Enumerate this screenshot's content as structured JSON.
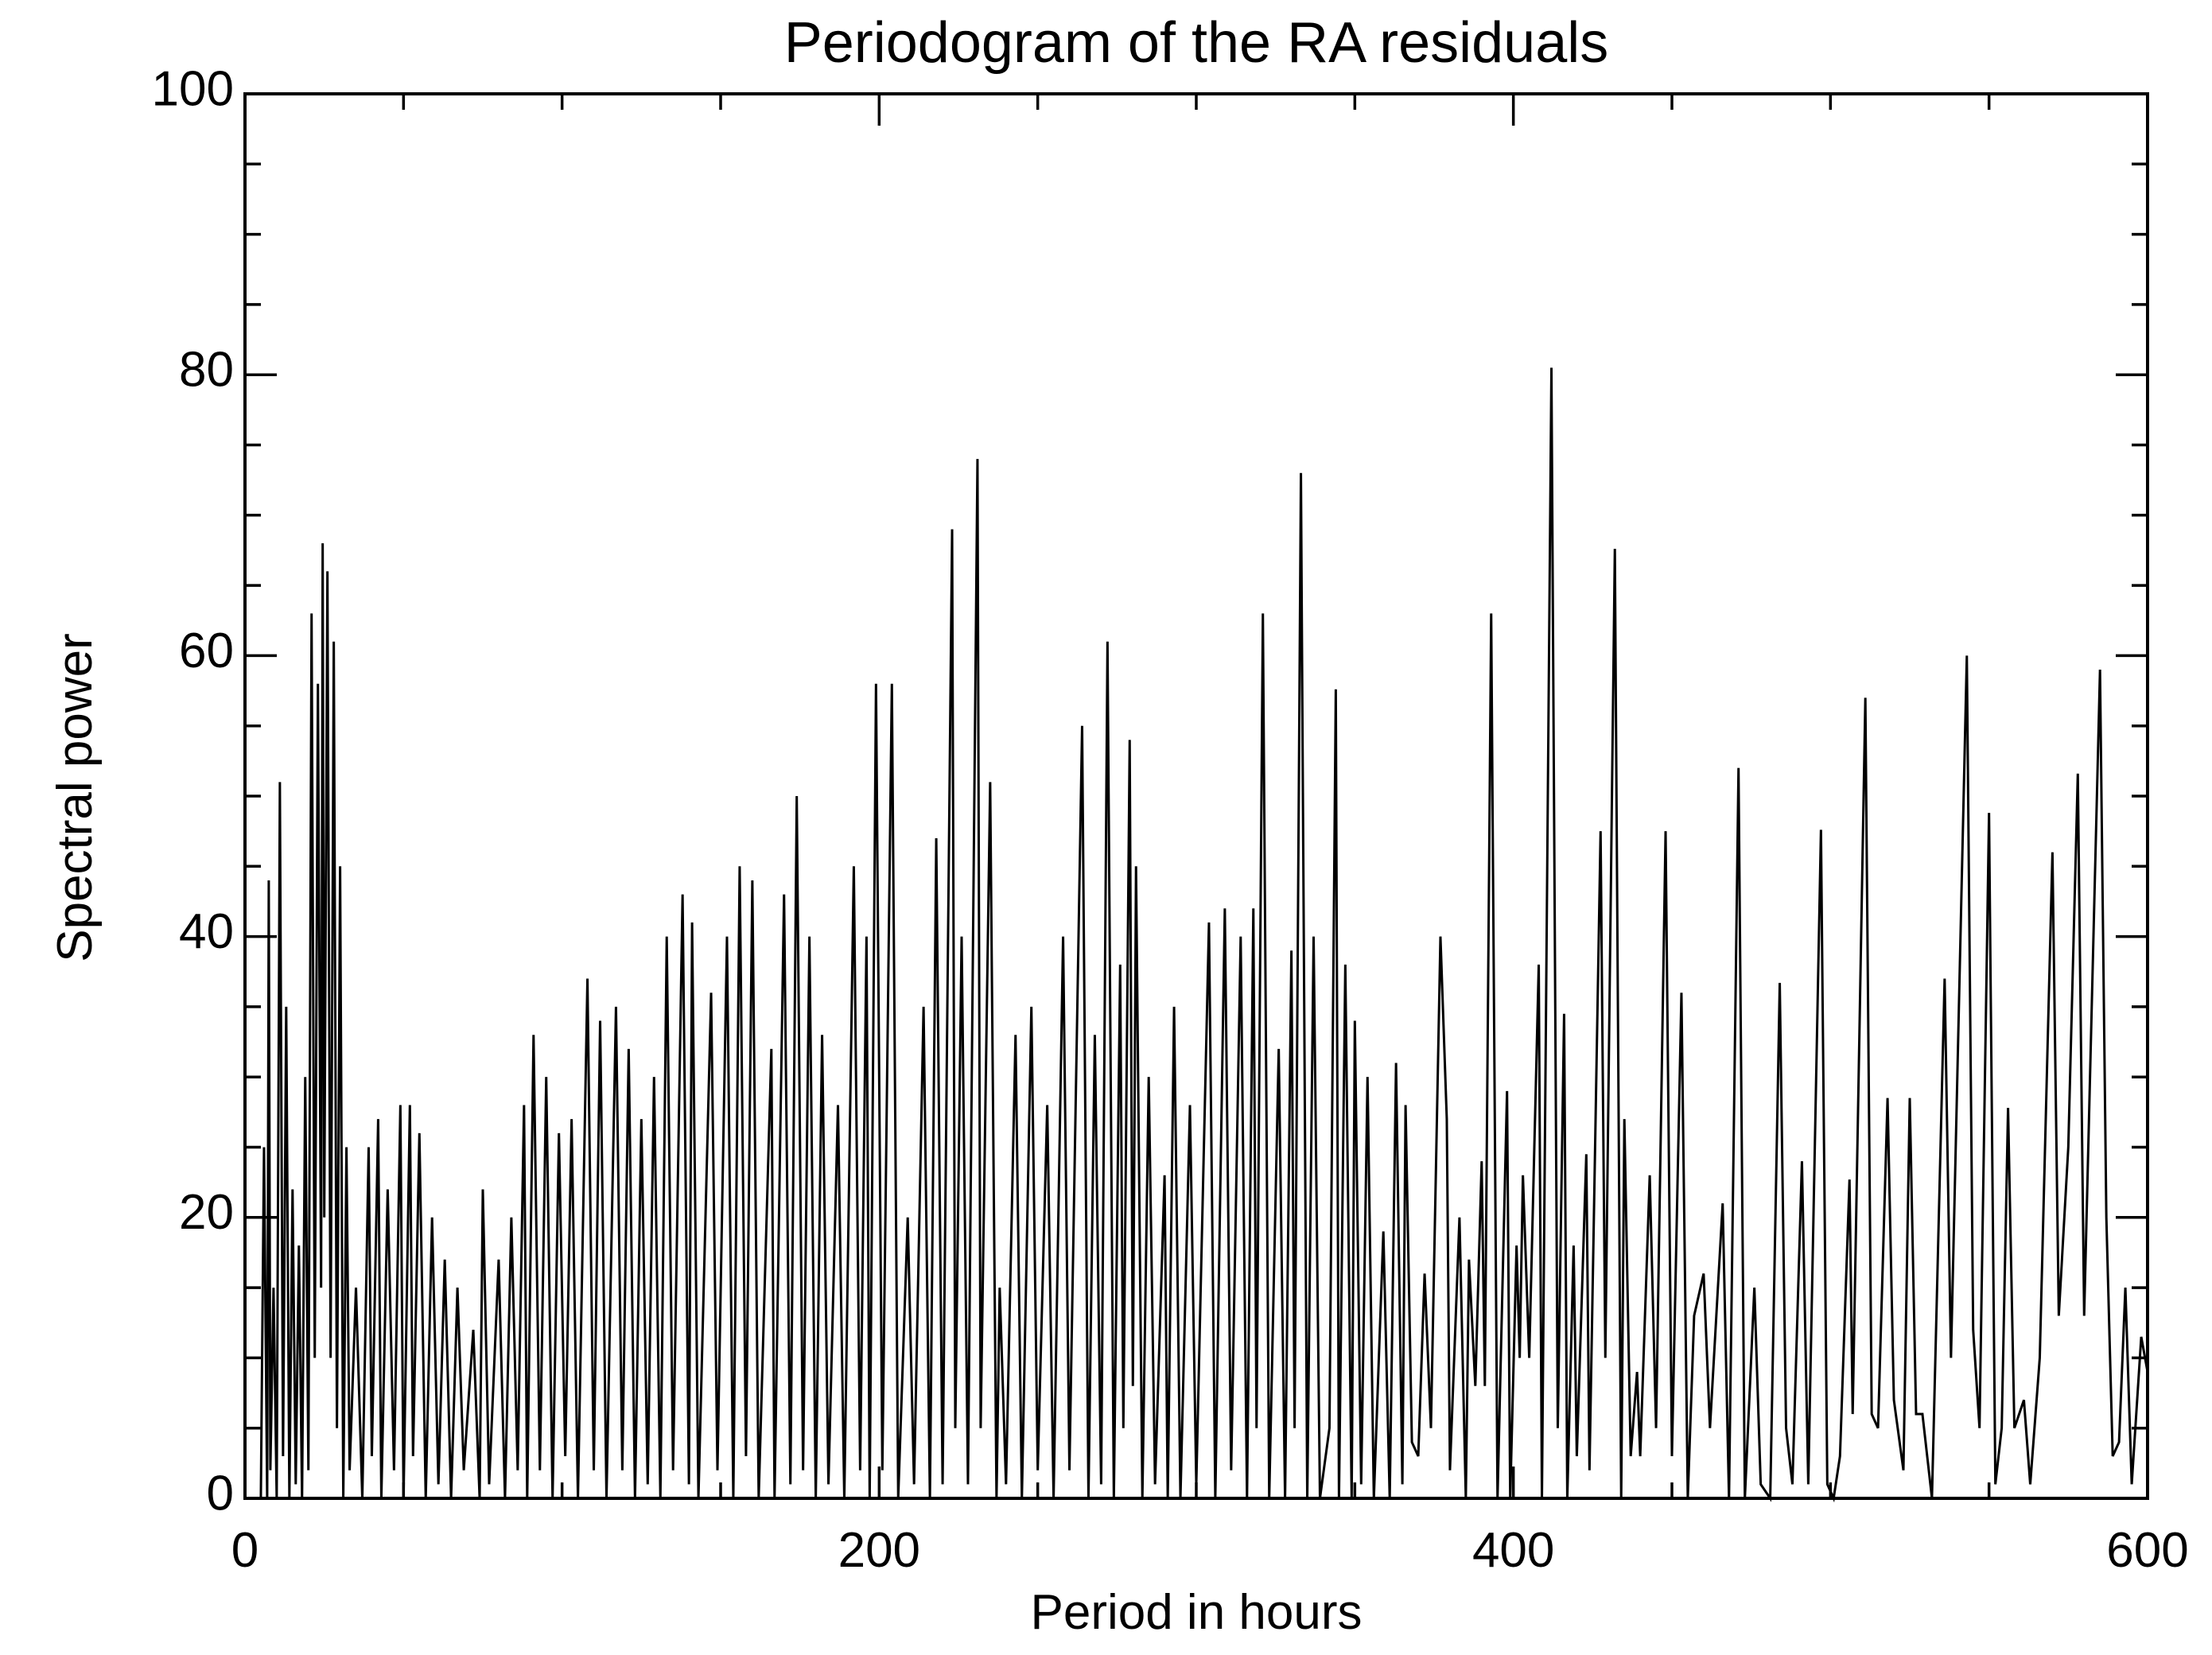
{
  "chart_data": {
    "type": "line",
    "title": "Periodogram of the RA residuals",
    "x_label": "Period in hours",
    "y_label": "Spectral power",
    "xlim": [
      0,
      600
    ],
    "ylim": [
      0,
      100
    ],
    "xticks": [
      0,
      200,
      400,
      600
    ],
    "yticks": [
      0,
      20,
      40,
      60,
      80,
      100
    ],
    "minor_per_major": 4,
    "color": "#000000",
    "grid": false,
    "x": [
      5,
      6,
      7,
      7.5,
      8,
      9,
      10,
      11,
      12,
      13,
      14,
      15,
      16,
      17,
      18,
      19,
      20,
      21,
      22,
      23,
      24,
      24.5,
      25,
      26,
      27,
      28,
      29,
      30,
      31,
      32,
      33,
      35,
      37,
      39,
      40,
      42,
      43,
      45,
      47,
      49,
      50,
      52,
      53,
      55,
      57,
      59,
      61,
      63,
      65,
      67,
      69,
      72,
      74,
      75,
      77,
      80,
      82,
      84,
      86,
      88,
      89,
      91,
      93,
      95,
      97,
      99,
      101,
      103,
      105,
      108,
      110,
      112,
      114,
      117,
      119,
      121,
      123,
      125,
      127,
      129,
      131,
      133,
      135,
      138,
      140,
      141,
      143,
      147,
      149,
      152,
      154,
      156,
      158,
      160,
      162,
      166,
      167,
      170,
      172,
      174,
      176,
      178,
      180,
      182,
      184,
      187,
      189,
      192,
      194,
      196,
      197,
      199,
      201,
      204,
      206,
      209,
      211,
      214,
      216,
      218,
      220,
      223,
      224,
      226,
      228,
      231,
      232,
      235,
      237,
      238,
      240,
      243,
      245,
      248,
      250,
      253,
      255,
      258,
      260,
      264,
      266,
      268,
      270,
      272,
      274,
      276,
      277,
      279,
      280,
      281,
      283,
      285,
      287,
      290,
      291,
      293,
      295,
      298,
      300,
      304,
      306,
      309,
      311,
      314,
      316,
      318,
      319,
      321,
      323,
      326,
      328,
      330,
      331,
      333,
      335,
      337,
      339,
      342,
      344,
      345,
      347,
      349,
      350,
      352,
      354,
      356,
      359,
      361,
      363,
      365,
      366,
      368,
      370,
      372,
      374,
      377,
      379,
      380,
      383,
      385,
      386,
      388,
      390,
      391,
      393,
      395,
      398,
      399,
      401,
      402,
      403,
      405,
      408,
      409,
      412,
      414,
      416,
      417,
      419,
      420,
      423,
      424,
      427.5,
      429,
      432,
      434,
      435,
      437,
      439,
      440,
      443,
      445,
      448,
      450,
      453,
      455,
      457,
      460,
      462,
      466,
      468,
      471,
      473,
      476,
      478,
      481,
      484,
      486,
      488,
      491,
      493,
      497,
      499,
      501,
      503,
      506,
      507,
      511,
      513,
      515,
      518,
      520,
      523,
      525,
      527,
      529,
      532,
      536,
      538,
      543,
      545,
      547,
      550,
      552,
      554,
      556,
      558,
      561,
      563,
      566,
      570,
      572,
      575,
      578,
      580,
      585,
      587,
      589,
      591,
      593,
      595,
      598,
      600
    ],
    "y": [
      0,
      25,
      0,
      44,
      2,
      15,
      0,
      51,
      3,
      35,
      0,
      22,
      1,
      18,
      0,
      30,
      2,
      63,
      10,
      58,
      15,
      68,
      20,
      66,
      10,
      61,
      5,
      45,
      0,
      25,
      2,
      15,
      0,
      25,
      3,
      27,
      0,
      22,
      2,
      28,
      0,
      28,
      3,
      26,
      0,
      20,
      1,
      17,
      0,
      15,
      2,
      12,
      0,
      22,
      1,
      17,
      0,
      20,
      2,
      28,
      0,
      33,
      2,
      30,
      0,
      26,
      3,
      27,
      0,
      37,
      2,
      34,
      0,
      35,
      2,
      32,
      0,
      27,
      1,
      30,
      0,
      40,
      2,
      43,
      1,
      41,
      0,
      36,
      2,
      40,
      0,
      45,
      3,
      44,
      0,
      32,
      0,
      43,
      1,
      50,
      2,
      40,
      0,
      33,
      1,
      28,
      0,
      45,
      2,
      40,
      0,
      58,
      2,
      58,
      0,
      20,
      1,
      35,
      0,
      47,
      1,
      69,
      5,
      40,
      1,
      74,
      5,
      51,
      0,
      15,
      1,
      33,
      0,
      35,
      2,
      28,
      0,
      40,
      2,
      55,
      0,
      33,
      1,
      61,
      0,
      38,
      5,
      54,
      8,
      45,
      0,
      30,
      1,
      23,
      0,
      35,
      0,
      28,
      1,
      41,
      0,
      42,
      2,
      40,
      0,
      42,
      5,
      63,
      0,
      32,
      0,
      39,
      5,
      73,
      0,
      40,
      0,
      5,
      57.6,
      0,
      38,
      0,
      34,
      1,
      30,
      0,
      19,
      0,
      31,
      1,
      28,
      4,
      3,
      16,
      5,
      40,
      27,
      2,
      20,
      0,
      17,
      8,
      24,
      8,
      63,
      0,
      29,
      0,
      18,
      10,
      23,
      10,
      38,
      0,
      80.5,
      5,
      34.5,
      0,
      18,
      3,
      24.5,
      2,
      47.5,
      10,
      67.6,
      0,
      27,
      3,
      9,
      3,
      23,
      5,
      47.5,
      3,
      36,
      0,
      13,
      16,
      5,
      21,
      0,
      52,
      0,
      15,
      1,
      0,
      36.7,
      5,
      1,
      24,
      1,
      47.6,
      1,
      0,
      3,
      22.7,
      6,
      57,
      6,
      5,
      28.5,
      7,
      2,
      28.5,
      6,
      6,
      0,
      37,
      10,
      60,
      12,
      5,
      48.8,
      1,
      5,
      27.8,
      5,
      7,
      1,
      10,
      46,
      13,
      25,
      51.6,
      13,
      59,
      20,
      3,
      4,
      15,
      1,
      11.5,
      9
    ]
  }
}
